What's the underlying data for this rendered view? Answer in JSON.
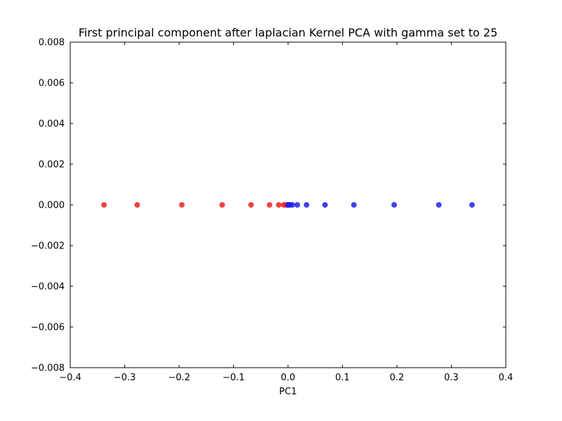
{
  "chart_data": {
    "type": "scatter",
    "title": "First principal component after laplacian Kernel PCA with gamma set to 25",
    "xlabel": "PC1",
    "ylabel": "",
    "xlim": [
      -0.4,
      0.4
    ],
    "ylim": [
      -0.008,
      0.008
    ],
    "x_ticks": [
      "−0.4",
      "−0.3",
      "−0.2",
      "−0.1",
      "0.0",
      "0.1",
      "0.2",
      "0.3",
      "0.4"
    ],
    "y_ticks": [
      "0.008",
      "0.006",
      "0.004",
      "0.002",
      "0.000",
      "−0.002",
      "−0.004",
      "−0.006",
      "−0.008"
    ],
    "grid": false,
    "series": [
      {
        "color": "#ee2222",
        "points": [
          {
            "x": -0.338,
            "y": 0.0
          },
          {
            "x": -0.277,
            "y": 0.0
          },
          {
            "x": -0.195,
            "y": 0.0
          },
          {
            "x": -0.121,
            "y": 0.0
          },
          {
            "x": -0.068,
            "y": 0.0
          },
          {
            "x": -0.034,
            "y": 0.0
          },
          {
            "x": -0.017,
            "y": 0.0
          },
          {
            "x": -0.008,
            "y": 0.0
          },
          {
            "x": -0.004,
            "y": 0.0
          },
          {
            "x": -0.002,
            "y": 0.0
          },
          {
            "x": -0.001,
            "y": 0.0
          }
        ]
      },
      {
        "color": "#2222ee",
        "points": [
          {
            "x": 0.0,
            "y": 0.0
          },
          {
            "x": 0.001,
            "y": 0.0
          },
          {
            "x": 0.002,
            "y": 0.0
          },
          {
            "x": 0.004,
            "y": 0.0
          },
          {
            "x": 0.008,
            "y": 0.0
          },
          {
            "x": 0.017,
            "y": 0.0
          },
          {
            "x": 0.034,
            "y": 0.0
          },
          {
            "x": 0.068,
            "y": 0.0
          },
          {
            "x": 0.121,
            "y": 0.0
          },
          {
            "x": 0.195,
            "y": 0.0
          },
          {
            "x": 0.277,
            "y": 0.0
          },
          {
            "x": 0.338,
            "y": 0.0
          }
        ]
      }
    ]
  }
}
